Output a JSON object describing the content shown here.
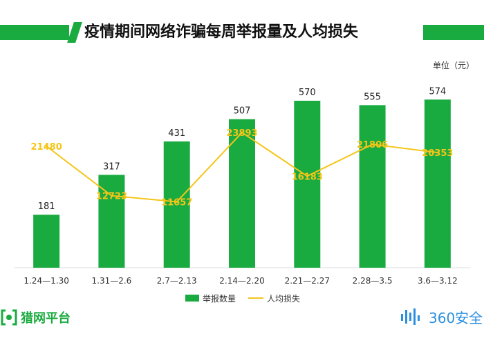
{
  "title": "疫情期间网络诈骗每周举报量及人均损失",
  "unit_label": "单位（元）",
  "legend": {
    "bar": "举报数量",
    "line": "人均损失"
  },
  "brand_left": "猎网平台",
  "brand_right": "360安全",
  "colors": {
    "accent": "#1aab40",
    "line": "#f5c518",
    "text": "#222222"
  },
  "chart_data": {
    "type": "bar",
    "categories": [
      "1.24—1.30",
      "1.31—2.6",
      "2.7—2.13",
      "2.14—2.20",
      "2.21—2.27",
      "2.28—3.5",
      "3.6—3.12"
    ],
    "series": [
      {
        "name": "举报数量",
        "type": "bar",
        "values": [
          181,
          317,
          431,
          507,
          570,
          555,
          574
        ]
      },
      {
        "name": "人均损失",
        "type": "line",
        "values": [
          21480,
          12723,
          11657,
          23893,
          16183,
          21806,
          20353
        ]
      }
    ],
    "ylim_left": [
      0,
      600
    ],
    "ylim_right": [
      0,
      30000
    ],
    "grid": false,
    "legend_position": "bottom"
  }
}
